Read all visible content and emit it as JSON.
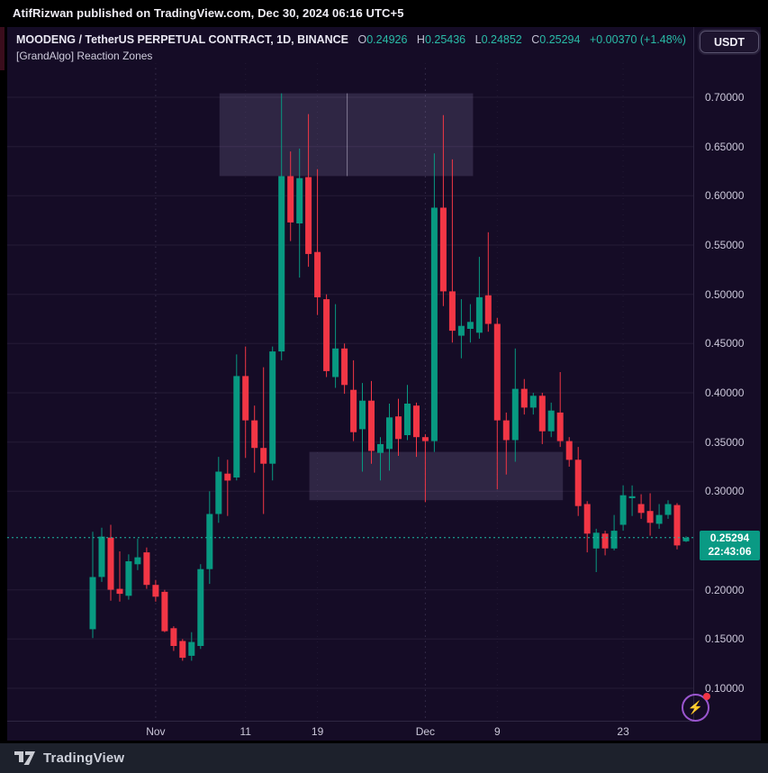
{
  "top_bar": {
    "text": "AtifRizwan published on TradingView.com, Dec 30, 2024 06:16 UTC+5"
  },
  "header": {
    "symbol_title": "MOODENG / TetherUS PERPETUAL CONTRACT, 1D, BINANCE",
    "ohlc": {
      "o_label": "O",
      "o_value": "0.24926",
      "h_label": "H",
      "h_value": "0.25436",
      "l_label": "L",
      "l_value": "0.24852",
      "c_label": "C",
      "c_value": "0.25294",
      "change": "+0.00370 (+1.48%)"
    },
    "indicator_label": "[GrandAlgo] Reaction Zones",
    "currency_button": "USDT"
  },
  "price_scale": {
    "ticks": [
      {
        "label": "0.70000",
        "value": 0.7
      },
      {
        "label": "0.65000",
        "value": 0.65
      },
      {
        "label": "0.60000",
        "value": 0.6
      },
      {
        "label": "0.55000",
        "value": 0.55
      },
      {
        "label": "0.50000",
        "value": 0.5
      },
      {
        "label": "0.45000",
        "value": 0.45
      },
      {
        "label": "0.40000",
        "value": 0.4
      },
      {
        "label": "0.35000",
        "value": 0.35
      },
      {
        "label": "0.30000",
        "value": 0.3
      },
      {
        "label": "0.20000",
        "value": 0.2
      },
      {
        "label": "0.15000",
        "value": 0.15
      },
      {
        "label": "0.10000",
        "value": 0.1
      }
    ],
    "price_label": {
      "price": "0.25294",
      "countdown": "22:43:06"
    }
  },
  "footer": {
    "brand": "TradingView"
  },
  "colors": {
    "up": "#089981",
    "down": "#f23645",
    "accent_teal": "#2abca8",
    "price_label_bg": "#0a9a84",
    "zone_fill": "rgba(188,172,228,0.16)",
    "widget_bg": "#150c26",
    "footer_bg": "#1d212c"
  },
  "chart_data": {
    "type": "candlestick",
    "title": "MOODENG / TetherUS PERPETUAL CONTRACT, 1D, BINANCE",
    "indicator": "[GrandAlgo] Reaction Zones",
    "timeframe": "1D",
    "quote_currency": "USDT",
    "y_axis": {
      "min": 0.067,
      "max": 0.72,
      "tick_step": 0.05,
      "grid": true,
      "side": "right"
    },
    "x_axis": {
      "ticks": [
        {
          "label": "Nov",
          "idx": 7
        },
        {
          "label": "11",
          "idx": 17
        },
        {
          "label": "19",
          "idx": 25
        },
        {
          "label": "Dec",
          "idx": 37
        },
        {
          "label": "9",
          "idx": 45
        },
        {
          "label": "23",
          "idx": 59
        }
      ]
    },
    "month_separators": [
      7,
      37
    ],
    "last_price": 0.25294,
    "countdown": "22:43:06",
    "zones": [
      {
        "name": "reaction-zone-upper",
        "idx_from": 14.1,
        "idx_to": 42.3,
        "divider_idx": 28.3,
        "price_top": 0.704,
        "price_bottom": 0.62
      },
      {
        "name": "reaction-zone-lower",
        "idx_from": 24.1,
        "idx_to": 52.3,
        "price_top": 0.34,
        "price_bottom": 0.291
      }
    ],
    "candles": [
      {
        "d": "Oct 25",
        "o": 0.16,
        "h": 0.259,
        "l": 0.151,
        "c": 0.213
      },
      {
        "d": "Oct 26",
        "o": 0.213,
        "h": 0.263,
        "l": 0.208,
        "c": 0.254
      },
      {
        "d": "Oct 27",
        "o": 0.253,
        "h": 0.266,
        "l": 0.189,
        "c": 0.2
      },
      {
        "d": "Oct 28",
        "o": 0.201,
        "h": 0.239,
        "l": 0.188,
        "c": 0.196
      },
      {
        "d": "Oct 29",
        "o": 0.194,
        "h": 0.236,
        "l": 0.19,
        "c": 0.229
      },
      {
        "d": "Oct 30",
        "o": 0.226,
        "h": 0.252,
        "l": 0.22,
        "c": 0.233
      },
      {
        "d": "Oct 31",
        "o": 0.238,
        "h": 0.243,
        "l": 0.201,
        "c": 0.205
      },
      {
        "d": "Nov 1",
        "o": 0.205,
        "h": 0.21,
        "l": 0.188,
        "c": 0.193
      },
      {
        "d": "Nov 2",
        "o": 0.198,
        "h": 0.2,
        "l": 0.157,
        "c": 0.158
      },
      {
        "d": "Nov 3",
        "o": 0.161,
        "h": 0.163,
        "l": 0.138,
        "c": 0.143
      },
      {
        "d": "Nov 4",
        "o": 0.148,
        "h": 0.15,
        "l": 0.128,
        "c": 0.131
      },
      {
        "d": "Nov 5",
        "o": 0.133,
        "h": 0.157,
        "l": 0.128,
        "c": 0.147
      },
      {
        "d": "Nov 6",
        "o": 0.143,
        "h": 0.226,
        "l": 0.14,
        "c": 0.221
      },
      {
        "d": "Nov 7",
        "o": 0.221,
        "h": 0.3,
        "l": 0.206,
        "c": 0.277
      },
      {
        "d": "Nov 8",
        "o": 0.277,
        "h": 0.335,
        "l": 0.268,
        "c": 0.32
      },
      {
        "d": "Nov 9",
        "o": 0.318,
        "h": 0.332,
        "l": 0.275,
        "c": 0.311
      },
      {
        "d": "Nov 10",
        "o": 0.314,
        "h": 0.439,
        "l": 0.311,
        "c": 0.417
      },
      {
        "d": "Nov 11",
        "o": 0.417,
        "h": 0.447,
        "l": 0.334,
        "c": 0.372
      },
      {
        "d": "Nov 12",
        "o": 0.372,
        "h": 0.387,
        "l": 0.319,
        "c": 0.344
      },
      {
        "d": "Nov 13",
        "o": 0.344,
        "h": 0.426,
        "l": 0.277,
        "c": 0.328
      },
      {
        "d": "Nov 14",
        "o": 0.328,
        "h": 0.447,
        "l": 0.311,
        "c": 0.442
      },
      {
        "d": "Nov 15",
        "o": 0.442,
        "h": 0.704,
        "l": 0.433,
        "c": 0.62
      },
      {
        "d": "Nov 16",
        "o": 0.62,
        "h": 0.645,
        "l": 0.554,
        "c": 0.573
      },
      {
        "d": "Nov 17",
        "o": 0.572,
        "h": 0.648,
        "l": 0.517,
        "c": 0.618
      },
      {
        "d": "Nov 18",
        "o": 0.619,
        "h": 0.683,
        "l": 0.528,
        "c": 0.541
      },
      {
        "d": "Nov 19",
        "o": 0.543,
        "h": 0.627,
        "l": 0.479,
        "c": 0.497
      },
      {
        "d": "Nov 20",
        "o": 0.495,
        "h": 0.5,
        "l": 0.416,
        "c": 0.422
      },
      {
        "d": "Nov 21",
        "o": 0.416,
        "h": 0.49,
        "l": 0.405,
        "c": 0.445
      },
      {
        "d": "Nov 22",
        "o": 0.445,
        "h": 0.45,
        "l": 0.399,
        "c": 0.408
      },
      {
        "d": "Nov 23",
        "o": 0.403,
        "h": 0.433,
        "l": 0.351,
        "c": 0.36
      },
      {
        "d": "Nov 24",
        "o": 0.363,
        "h": 0.41,
        "l": 0.32,
        "c": 0.392
      },
      {
        "d": "Nov 25",
        "o": 0.392,
        "h": 0.412,
        "l": 0.328,
        "c": 0.341
      },
      {
        "d": "Nov 26",
        "o": 0.339,
        "h": 0.355,
        "l": 0.311,
        "c": 0.348
      },
      {
        "d": "Nov 27",
        "o": 0.343,
        "h": 0.389,
        "l": 0.321,
        "c": 0.375
      },
      {
        "d": "Nov 28",
        "o": 0.376,
        "h": 0.394,
        "l": 0.336,
        "c": 0.353
      },
      {
        "d": "Nov 29",
        "o": 0.357,
        "h": 0.408,
        "l": 0.352,
        "c": 0.389
      },
      {
        "d": "Nov 30",
        "o": 0.387,
        "h": 0.39,
        "l": 0.335,
        "c": 0.355
      },
      {
        "d": "Dec 1",
        "o": 0.355,
        "h": 0.358,
        "l": 0.289,
        "c": 0.351
      },
      {
        "d": "Dec 2",
        "o": 0.351,
        "h": 0.643,
        "l": 0.34,
        "c": 0.588
      },
      {
        "d": "Dec 3",
        "o": 0.588,
        "h": 0.682,
        "l": 0.488,
        "c": 0.503
      },
      {
        "d": "Dec 4",
        "o": 0.503,
        "h": 0.637,
        "l": 0.451,
        "c": 0.463
      },
      {
        "d": "Dec 5",
        "o": 0.458,
        "h": 0.495,
        "l": 0.435,
        "c": 0.468
      },
      {
        "d": "Dec 6",
        "o": 0.465,
        "h": 0.49,
        "l": 0.451,
        "c": 0.472
      },
      {
        "d": "Dec 7",
        "o": 0.461,
        "h": 0.538,
        "l": 0.455,
        "c": 0.497
      },
      {
        "d": "Dec 8",
        "o": 0.499,
        "h": 0.563,
        "l": 0.462,
        "c": 0.47
      },
      {
        "d": "Dec 9",
        "o": 0.47,
        "h": 0.476,
        "l": 0.302,
        "c": 0.372
      },
      {
        "d": "Dec 10",
        "o": 0.372,
        "h": 0.38,
        "l": 0.317,
        "c": 0.352
      },
      {
        "d": "Dec 11",
        "o": 0.352,
        "h": 0.445,
        "l": 0.33,
        "c": 0.404
      },
      {
        "d": "Dec 12",
        "o": 0.404,
        "h": 0.414,
        "l": 0.378,
        "c": 0.385
      },
      {
        "d": "Dec 13",
        "o": 0.385,
        "h": 0.4,
        "l": 0.378,
        "c": 0.397
      },
      {
        "d": "Dec 14",
        "o": 0.397,
        "h": 0.4,
        "l": 0.348,
        "c": 0.361
      },
      {
        "d": "Dec 15",
        "o": 0.361,
        "h": 0.39,
        "l": 0.355,
        "c": 0.382
      },
      {
        "d": "Dec 16",
        "o": 0.38,
        "h": 0.421,
        "l": 0.345,
        "c": 0.351
      },
      {
        "d": "Dec 17",
        "o": 0.351,
        "h": 0.355,
        "l": 0.325,
        "c": 0.332
      },
      {
        "d": "Dec 18",
        "o": 0.332,
        "h": 0.345,
        "l": 0.275,
        "c": 0.285
      },
      {
        "d": "Dec 19",
        "o": 0.287,
        "h": 0.29,
        "l": 0.238,
        "c": 0.257
      },
      {
        "d": "Dec 20",
        "o": 0.242,
        "h": 0.262,
        "l": 0.218,
        "c": 0.258
      },
      {
        "d": "Dec 21",
        "o": 0.257,
        "h": 0.26,
        "l": 0.235,
        "c": 0.242
      },
      {
        "d": "Dec 22",
        "o": 0.242,
        "h": 0.276,
        "l": 0.24,
        "c": 0.26
      },
      {
        "d": "Dec 23",
        "o": 0.266,
        "h": 0.306,
        "l": 0.26,
        "c": 0.296
      },
      {
        "d": "Dec 24",
        "o": 0.293,
        "h": 0.306,
        "l": 0.275,
        "c": 0.295
      },
      {
        "d": "Dec 25",
        "o": 0.287,
        "h": 0.297,
        "l": 0.272,
        "c": 0.278
      },
      {
        "d": "Dec 26",
        "o": 0.28,
        "h": 0.298,
        "l": 0.255,
        "c": 0.268
      },
      {
        "d": "Dec 27",
        "o": 0.267,
        "h": 0.287,
        "l": 0.262,
        "c": 0.276
      },
      {
        "d": "Dec 28",
        "o": 0.276,
        "h": 0.291,
        "l": 0.272,
        "c": 0.287
      },
      {
        "d": "Dec 29",
        "o": 0.286,
        "h": 0.288,
        "l": 0.241,
        "c": 0.245
      },
      {
        "d": "Dec 30",
        "o": 0.24926,
        "h": 0.25436,
        "l": 0.24852,
        "c": 0.25294
      }
    ]
  }
}
